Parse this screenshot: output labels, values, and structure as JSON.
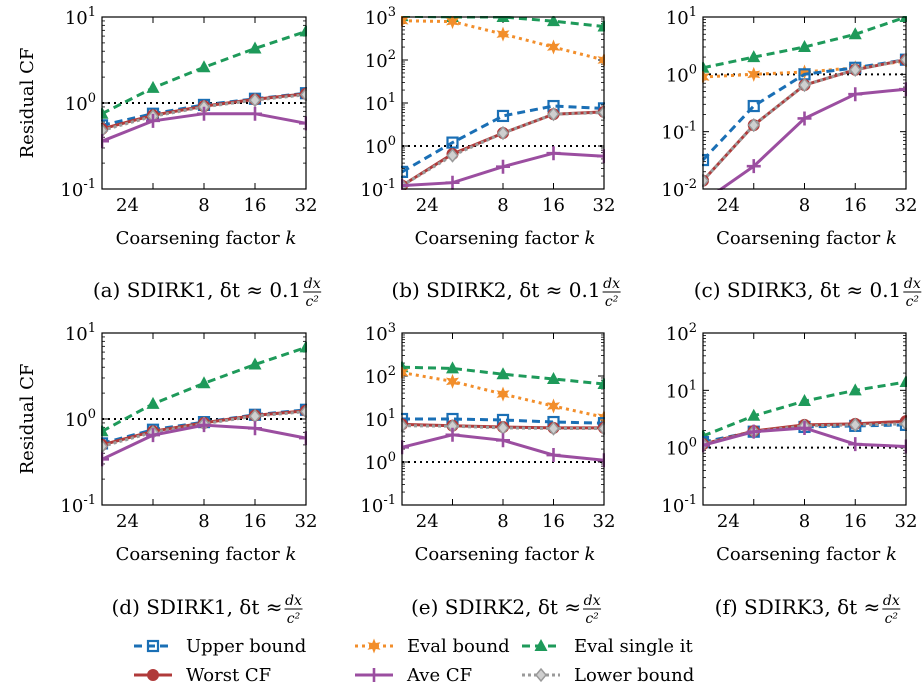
{
  "shared": {
    "x_ticks": [
      2,
      4,
      8,
      16,
      32
    ],
    "x_tick_labels": [
      "2",
      "4",
      "8",
      "16",
      "32"
    ],
    "x_tick_label_2_4": "24",
    "xlabel": "Coarsening factor k",
    "ylabel": "Residual CF",
    "xlim": [
      2,
      32
    ]
  },
  "legend": [
    {
      "key": "upper",
      "label": "Upper bound"
    },
    {
      "key": "eval",
      "label": "Eval bound"
    },
    {
      "key": "single",
      "label": "Eval single it"
    },
    {
      "key": "worst",
      "label": "Worst CF"
    },
    {
      "key": "ave",
      "label": "Ave CF"
    },
    {
      "key": "lower",
      "label": "Lower bound"
    }
  ],
  "styles": {
    "upper": {
      "color": "#1a6fb5",
      "dash": "8,5",
      "marker": "square"
    },
    "eval": {
      "color": "#f28e2b",
      "dash": "3,4",
      "marker": "star"
    },
    "single": {
      "color": "#1e9a5a",
      "dash": "8,5",
      "marker": "triangle"
    },
    "worst": {
      "color": "#b03a3a",
      "dash": "",
      "marker": "circle"
    },
    "ave": {
      "color": "#9b4ea0",
      "dash": "",
      "marker": "plus"
    },
    "lower": {
      "color": "#9a9a9a",
      "dash": "3,3",
      "marker": "diamond"
    }
  },
  "chart_data": [
    {
      "type": "line",
      "log_y": true,
      "ylim_exp": [
        -1,
        1
      ],
      "caption": "(a) SDIRK1, δt ≈ 0.1 dx/c²",
      "x": [
        2,
        4,
        8,
        16,
        32
      ],
      "series": [
        {
          "key": "single",
          "values": [
            0.75,
            1.5,
            2.6,
            4.3,
            6.8
          ]
        },
        {
          "key": "upper",
          "values": [
            0.55,
            0.75,
            0.95,
            1.12,
            1.3
          ]
        },
        {
          "key": "worst",
          "values": [
            0.5,
            0.72,
            0.92,
            1.1,
            1.28
          ]
        },
        {
          "key": "lower",
          "values": [
            0.48,
            0.7,
            0.9,
            1.08,
            1.25
          ]
        },
        {
          "key": "ave",
          "values": [
            0.36,
            0.62,
            0.75,
            0.75,
            0.58
          ]
        }
      ],
      "reference_line": 1
    },
    {
      "type": "line",
      "log_y": true,
      "ylim_exp": [
        -1,
        3
      ],
      "caption": "(b) SDIRK2, δt ≈ 0.1 dx/c²",
      "x": [
        2,
        4,
        8,
        16,
        32
      ],
      "series": [
        {
          "key": "single",
          "values": [
            1050,
            1000,
            1000,
            800,
            600
          ]
        },
        {
          "key": "eval",
          "values": [
            820,
            780,
            400,
            200,
            100
          ]
        },
        {
          "key": "upper",
          "values": [
            0.25,
            1.2,
            5.0,
            8.5,
            7.5
          ]
        },
        {
          "key": "worst",
          "values": [
            0.12,
            0.65,
            2.0,
            5.5,
            6.2
          ]
        },
        {
          "key": "lower",
          "values": [
            0.12,
            0.6,
            2.0,
            5.5,
            6.0
          ]
        },
        {
          "key": "ave",
          "values": [
            0.12,
            0.14,
            0.33,
            0.68,
            0.58
          ]
        }
      ],
      "reference_line": 1
    },
    {
      "type": "line",
      "log_y": true,
      "ylim_exp": [
        -2,
        1
      ],
      "caption": "(c) SDIRK3, δt ≈ 0.1 dx/c²",
      "x": [
        2,
        4,
        8,
        16,
        32
      ],
      "series": [
        {
          "key": "single",
          "values": [
            1.3,
            2.0,
            3.0,
            5.0,
            10.0
          ]
        },
        {
          "key": "eval",
          "values": [
            0.9,
            1.0,
            1.1,
            1.3,
            1.7
          ]
        },
        {
          "key": "upper",
          "values": [
            0.032,
            0.28,
            1.0,
            1.3,
            1.8
          ]
        },
        {
          "key": "worst",
          "values": [
            0.014,
            0.13,
            0.65,
            1.2,
            1.8
          ]
        },
        {
          "key": "lower",
          "values": [
            0.014,
            0.13,
            0.65,
            1.2,
            1.8
          ]
        },
        {
          "key": "ave",
          "values": [
            0.006,
            0.025,
            0.17,
            0.45,
            0.55
          ]
        }
      ],
      "reference_line": 1
    },
    {
      "type": "line",
      "log_y": true,
      "ylim_exp": [
        -1,
        1
      ],
      "caption": "(d) SDIRK1, δt ≈ dx/c²",
      "x": [
        2,
        4,
        8,
        16,
        32
      ],
      "series": [
        {
          "key": "single",
          "values": [
            0.72,
            1.5,
            2.6,
            4.3,
            6.8
          ]
        },
        {
          "key": "upper",
          "values": [
            0.52,
            0.75,
            0.92,
            1.12,
            1.28
          ]
        },
        {
          "key": "worst",
          "values": [
            0.5,
            0.72,
            0.9,
            1.1,
            1.25
          ]
        },
        {
          "key": "lower",
          "values": [
            0.48,
            0.7,
            0.88,
            1.08,
            1.22
          ]
        },
        {
          "key": "ave",
          "values": [
            0.34,
            0.65,
            0.85,
            0.78,
            0.6
          ]
        }
      ],
      "reference_line": 1
    },
    {
      "type": "line",
      "log_y": true,
      "ylim_exp": [
        -1,
        3
      ],
      "caption": "(e) SDIRK2, δt ≈ dx/c²",
      "x": [
        2,
        4,
        8,
        16,
        32
      ],
      "series": [
        {
          "key": "single",
          "values": [
            160,
            150,
            110,
            85,
            65
          ]
        },
        {
          "key": "eval",
          "values": [
            120,
            75,
            38,
            20,
            11
          ]
        },
        {
          "key": "upper",
          "values": [
            10,
            10,
            9.5,
            8.5,
            8.0
          ]
        },
        {
          "key": "worst",
          "values": [
            7.5,
            7.0,
            6.5,
            6.2,
            6.2
          ]
        },
        {
          "key": "lower",
          "values": [
            7.0,
            6.8,
            6.2,
            6.0,
            6.0
          ]
        },
        {
          "key": "ave",
          "values": [
            2.2,
            4.3,
            3.2,
            1.45,
            1.1
          ]
        }
      ],
      "reference_line": 1
    },
    {
      "type": "line",
      "log_y": true,
      "ylim_exp": [
        -1,
        2
      ],
      "caption": "(f) SDIRK3, δt ≈ dx/c²",
      "x": [
        2,
        4,
        8,
        16,
        32
      ],
      "series": [
        {
          "key": "single",
          "values": [
            1.6,
            3.6,
            6.5,
            10.0,
            14.0
          ]
        },
        {
          "key": "upper",
          "values": [
            1.25,
            1.9,
            2.3,
            2.4,
            2.5
          ]
        },
        {
          "key": "worst",
          "values": [
            1.15,
            1.95,
            2.5,
            2.6,
            2.9
          ]
        },
        {
          "key": "lower",
          "values": [
            1.15,
            1.9,
            2.4,
            2.5,
            2.6
          ]
        },
        {
          "key": "ave",
          "values": [
            1.1,
            1.9,
            2.2,
            1.15,
            1.05
          ]
        }
      ],
      "reference_line": 1
    }
  ]
}
